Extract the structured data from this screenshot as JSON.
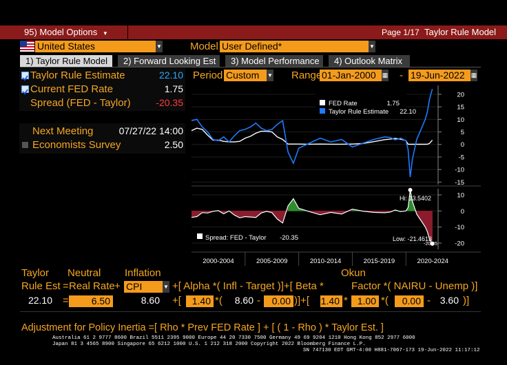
{
  "titlebar": {
    "menu_label": "95) Model Options",
    "page": "Page 1/17",
    "title": "Taylor Rule Model"
  },
  "country": {
    "value": "United States"
  },
  "model": {
    "label": "Model",
    "value": "User Defined*"
  },
  "tabs": [
    {
      "label": "1) Taylor Rule Model",
      "active": true
    },
    {
      "label": "2) Forward Looking Est",
      "active": false
    },
    {
      "label": "3) Model Performance",
      "active": false
    },
    {
      "label": "4) Outlook Matrix",
      "active": false
    }
  ],
  "metrics": {
    "taylor_estimate": {
      "label": "Taylor Rule Estimate",
      "value": "22.10",
      "checked": true,
      "color": "#29a8ff"
    },
    "current_fed": {
      "label": "Current FED Rate",
      "value": "1.75",
      "checked": true,
      "color": "#ffffff"
    },
    "spread": {
      "label": "Spread (FED - Taylor)",
      "value": "-20.35",
      "color": "#ff3b3b"
    }
  },
  "next_meeting": {
    "label": "Next Meeting",
    "value": "07/27/22 14:00"
  },
  "survey": {
    "label": "Economists Survey",
    "value": "2.50"
  },
  "period": {
    "label": "Period",
    "value": "Custom"
  },
  "range": {
    "label": "Range",
    "start": "01-Jan-2000",
    "sep": "-",
    "end": "19-Jun-2022"
  },
  "chart_data": [
    {
      "type": "line",
      "legend": [
        {
          "name": "FED Rate",
          "value": "1.75",
          "color": "#ffffff"
        },
        {
          "name": "Taylor Rule Estimate",
          "value": "22.10",
          "color": "#1e7bff"
        }
      ],
      "y_ticks": [
        "20",
        "15",
        "10",
        "5",
        "0",
        "-5",
        "-10",
        "-15"
      ],
      "ylim": [
        -16,
        23
      ],
      "x": [
        2000.0,
        2000.5,
        2001.0,
        2001.5,
        2002.0,
        2002.5,
        2003.0,
        2003.5,
        2004.0,
        2004.5,
        2005.0,
        2005.5,
        2006.0,
        2006.5,
        2007.0,
        2007.5,
        2008.0,
        2008.5,
        2009.0,
        2009.5,
        2010.0,
        2011.0,
        2012.0,
        2013.0,
        2014.0,
        2015.0,
        2016.0,
        2017.0,
        2018.0,
        2018.5,
        2019.0,
        2019.5,
        2020.0,
        2020.2,
        2020.4,
        2020.6,
        2021.0,
        2021.5,
        2021.8,
        2022.0,
        2022.2,
        2022.46
      ],
      "series": [
        {
          "name": "FED Rate",
          "values": [
            5.5,
            6.5,
            6.0,
            3.75,
            1.75,
            1.75,
            1.25,
            1.0,
            1.0,
            1.25,
            2.5,
            3.25,
            4.5,
            5.25,
            5.25,
            5.0,
            3.0,
            2.0,
            0.15,
            0.15,
            0.15,
            0.1,
            0.15,
            0.1,
            0.1,
            0.15,
            0.4,
            1.1,
            1.9,
            2.1,
            2.4,
            2.1,
            1.55,
            0.1,
            0.08,
            0.08,
            0.08,
            0.08,
            0.08,
            0.1,
            0.4,
            1.75
          ]
        },
        {
          "name": "Taylor Rule Estimate",
          "values": [
            9.5,
            10.0,
            7.0,
            5.0,
            2.0,
            1.5,
            3.0,
            1.0,
            3.5,
            5.5,
            6.0,
            7.0,
            8.5,
            6.5,
            5.5,
            6.0,
            8.0,
            9.5,
            -3.0,
            -7.5,
            -1.5,
            0.5,
            2.5,
            1.0,
            2.0,
            -1.0,
            0.5,
            2.0,
            3.0,
            2.8,
            1.8,
            2.5,
            1.5,
            -2.0,
            -13.0,
            -6.0,
            2.0,
            7.0,
            10.0,
            13.0,
            18.0,
            22.1
          ]
        }
      ]
    },
    {
      "type": "area",
      "legend": [
        {
          "name": "Spread: FED - Taylor",
          "value": "-20.35"
        }
      ],
      "y_ticks": [
        "10",
        "0",
        "-10",
        "-20"
      ],
      "ylim": [
        -23,
        13
      ],
      "hi_label": "Hi: 13.5402",
      "low_label": "Low: -21.4613",
      "last_label": "-20.35",
      "x": [
        2000.0,
        2000.5,
        2001.0,
        2001.5,
        2002.0,
        2002.5,
        2003.0,
        2003.5,
        2004.0,
        2004.5,
        2005.0,
        2005.5,
        2006.0,
        2006.5,
        2007.0,
        2007.5,
        2008.0,
        2008.5,
        2009.0,
        2009.5,
        2010.0,
        2011.0,
        2012.0,
        2013.0,
        2014.0,
        2015.0,
        2016.0,
        2017.0,
        2018.0,
        2018.5,
        2019.0,
        2019.5,
        2020.0,
        2020.2,
        2020.4,
        2020.6,
        2021.0,
        2021.5,
        2021.8,
        2022.0,
        2022.2,
        2022.46
      ],
      "values": [
        -4.0,
        -3.5,
        -1.0,
        -1.25,
        -0.25,
        0.25,
        -1.75,
        0.0,
        -2.5,
        -4.25,
        -3.5,
        -3.75,
        -4.0,
        -1.25,
        -0.25,
        -1.0,
        -5.0,
        -7.5,
        3.15,
        7.65,
        1.65,
        -0.4,
        -2.35,
        -0.9,
        -1.9,
        1.15,
        -0.1,
        -0.9,
        -1.1,
        -0.7,
        0.6,
        -0.4,
        0.05,
        2.1,
        13.08,
        6.08,
        -1.92,
        -6.92,
        -9.92,
        -12.9,
        -17.6,
        -20.35
      ],
      "x_labels": [
        "2000-2004",
        "2005-2009",
        "2010-2014",
        "2015-2019",
        "2020-2024"
      ]
    }
  ],
  "formula": {
    "taylor": "Taylor",
    "neutral": "Neutral",
    "inflation": "Inflation",
    "okun": "Okun",
    "rule_est": "Rule Est",
    "eq": "=",
    "real_rate": "Real Rate",
    "plus": "+",
    "inflation_select": "CPI",
    "alpha_part": "+[ Alpha *( Infl  - Target )]+[ Beta *",
    "factor_part": "Factor *( NAIRU - Unemp )]",
    "values": {
      "rule_est": "22.10",
      "neutral": "6.50",
      "infl": "8.60",
      "alpha": "1.40",
      "infl2": "8.60",
      "target": "0.00",
      "beta": "1.40",
      "factor": "1.00",
      "nairu": "0.00",
      "unemp": "3.60"
    },
    "adjustment": "Adjustment for Policy Inertia    =[   Rho    *     Prev FED Rate     ]  + [ ( 1 -  Rho    ) *  Taylor Est. ]"
  },
  "footer": {
    "line1": "Australia 61 2 9777 8600 Brazil 5511 2395 9000 Europe 44 20 7330 7500 Germany 49 69 9204 1210 Hong Kong 852 2977 6000",
    "line2": "Japan 81 3 4565 8900      Singapore 65 6212 1000      U.S. 1 212 318 2000            Copyright 2022 Bloomberg Finance L.P.",
    "line3": "SN 747130 EDT  GMT-4:00 H881-7067-173 19-Jun-2022 11:17:12"
  }
}
